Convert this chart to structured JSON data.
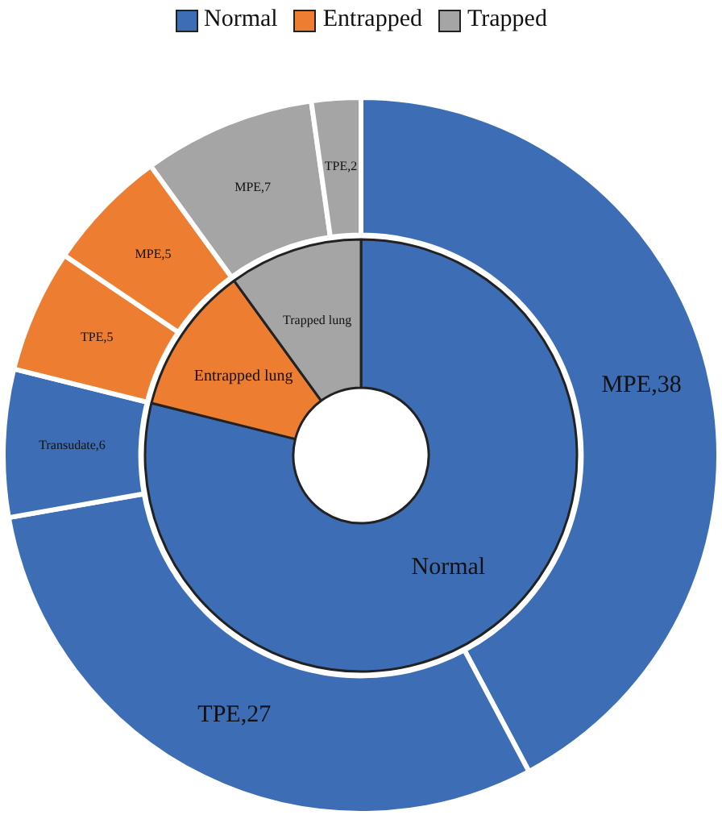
{
  "chart_data": [
    {
      "type": "other",
      "categories": [
        "Normal",
        "Entrapped",
        "Trapped"
      ],
      "colors": [
        "#3d6db5",
        "#ed7d31",
        "#a5a5a5"
      ]
    },
    {
      "type": "donut",
      "categories": [
        "MPE,38",
        "TPE,27",
        "Transudate,6",
        "TPE,5",
        "MPE,5",
        "MPE,7",
        "TPE,2"
      ],
      "values": [
        38,
        27,
        6,
        5,
        5,
        7,
        2
      ],
      "colors": [
        "#3d6db5",
        "#3d6db5",
        "#3d6db5",
        "#ed7d31",
        "#ed7d31",
        "#a5a5a5",
        "#a5a5a5"
      ]
    },
    {
      "type": "donut",
      "categories": [
        "Normal",
        "Entrapped lung",
        "Trapped lung"
      ],
      "values": [
        78.9,
        11.1,
        10
      ],
      "colors": [
        "#3d6db5",
        "#ed7d31",
        "#a5a5a5"
      ]
    }
  ]
}
